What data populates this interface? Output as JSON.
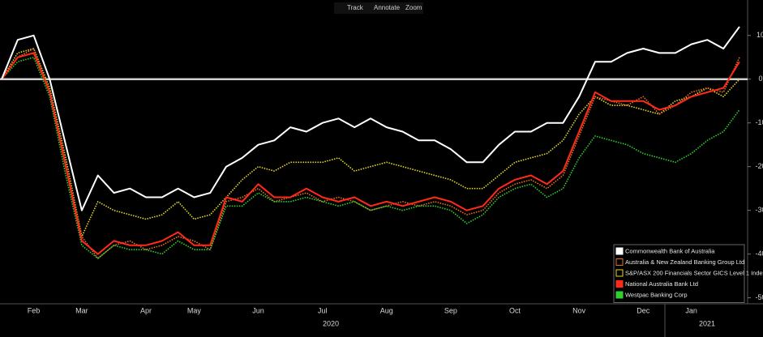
{
  "toolbar": {
    "items": [
      "Track",
      "Annotate",
      "Zoom"
    ]
  },
  "chart_data": {
    "type": "line",
    "categories": [
      null,
      null,
      "Feb",
      null,
      null,
      "Mar",
      null,
      null,
      null,
      "Apr",
      null,
      null,
      "May",
      null,
      null,
      null,
      "Jun",
      null,
      null,
      null,
      "Jul",
      null,
      null,
      null,
      "Aug",
      null,
      null,
      null,
      "Sep",
      null,
      null,
      null,
      "Oct",
      null,
      null,
      null,
      "Nov",
      null,
      null,
      null,
      "Dec",
      null,
      null,
      "Jan",
      null,
      null,
      null
    ],
    "year_labels": [
      "2020",
      "2021"
    ],
    "ylim": [
      -51,
      17
    ],
    "yticks": [
      10,
      0,
      -10,
      -20,
      -30,
      -40,
      -50
    ],
    "y_axis_side": "right",
    "zero_line": true,
    "legend": "lower right",
    "series": [
      {
        "name": "Commonwealth Bank of Australia",
        "color": "#ffffff",
        "style": "solid",
        "values": [
          0,
          9,
          10,
          0,
          -15,
          -30,
          -22,
          -26,
          -25,
          -27,
          -27,
          -25,
          -27,
          -26,
          -20,
          -18,
          -15,
          -14,
          -11,
          -12,
          -10,
          -9,
          -11,
          -9,
          -11,
          -12,
          -14,
          -14,
          -16,
          -19,
          -19,
          -15,
          -12,
          -12,
          -10,
          -10,
          -4,
          4,
          4,
          6,
          7,
          6,
          6,
          8,
          9,
          7,
          12
        ]
      },
      {
        "name": "Australia & New Zealand Banking Group Ltd",
        "color": "#e8731a",
        "style": "dotted",
        "values": [
          0,
          5,
          7,
          -3,
          -19,
          -36,
          -41,
          -38,
          -37,
          -39,
          -38,
          -36,
          -37,
          -39,
          -28,
          -27,
          -25,
          -28,
          -27,
          -26,
          -28,
          -27,
          -28,
          -30,
          -29,
          -28,
          -29,
          -28,
          -29,
          -31,
          -30,
          -26,
          -24,
          -23,
          -25,
          -22,
          -13,
          -4,
          -5,
          -6,
          -4,
          -8,
          -6,
          -3,
          -2,
          -3,
          5
        ]
      },
      {
        "name": "S&P/ASX 200 Financials Sector GICS Level 1 Index",
        "color": "#e6d829",
        "style": "dotted",
        "values": [
          0,
          6,
          7,
          -2,
          -18,
          -36,
          -28,
          -30,
          -31,
          -32,
          -31,
          -28,
          -32,
          -31,
          -27,
          -23,
          -20,
          -21,
          -19,
          -19,
          -19,
          -18,
          -21,
          -20,
          -19,
          -20,
          -21,
          -22,
          -23,
          -25,
          -25,
          -22,
          -19,
          -18,
          -17,
          -14,
          -8,
          -4,
          -6,
          -6,
          -7,
          -8,
          -5,
          -4,
          -2,
          -4,
          0
        ]
      },
      {
        "name": "National Australia Bank Ltd",
        "color": "#ff2a1a",
        "style": "solid",
        "values": [
          0,
          5,
          6,
          -3,
          -20,
          -37,
          -40,
          -37,
          -38,
          -38,
          -37,
          -35,
          -38,
          -38,
          -27,
          -28,
          -24,
          -27,
          -27,
          -25,
          -27,
          -28,
          -27,
          -29,
          -28,
          -29,
          -28,
          -27,
          -28,
          -30,
          -29,
          -25,
          -23,
          -22,
          -24,
          -21,
          -12,
          -3,
          -5,
          -5,
          -5,
          -7,
          -6,
          -4,
          -3,
          -2,
          4
        ]
      },
      {
        "name": "Westpac Banking Corp",
        "color": "#2ed12e",
        "style": "dotted",
        "values": [
          0,
          4,
          5,
          -4,
          -22,
          -38,
          -41,
          -38,
          -39,
          -39,
          -40,
          -37,
          -39,
          -39,
          -29,
          -29,
          -26,
          -28,
          -28,
          -27,
          -28,
          -29,
          -28,
          -30,
          -29,
          -30,
          -29,
          -29,
          -30,
          -33,
          -31,
          -27,
          -25,
          -24,
          -27,
          -25,
          -18,
          -13,
          -14,
          -15,
          -17,
          -18,
          -19,
          -17,
          -14,
          -12,
          -7
        ]
      }
    ]
  }
}
